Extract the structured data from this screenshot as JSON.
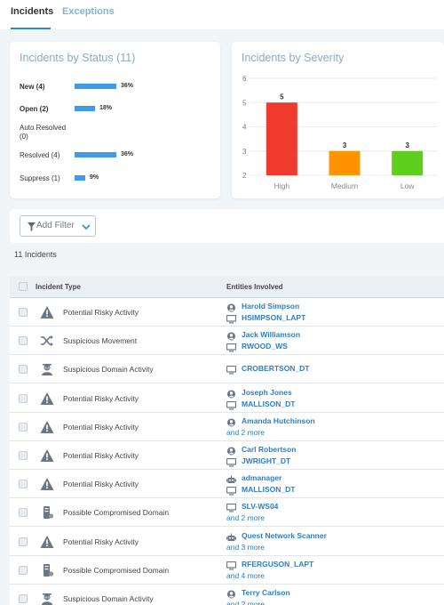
{
  "tabs": [
    "Incidents",
    "Exceptions"
  ],
  "status_card": {
    "title": "Incidents by Status (11)",
    "rows": [
      {
        "label": "New (4)",
        "bold": true,
        "pct": "36%",
        "fraction": 0.36
      },
      {
        "label": "Open (2)",
        "bold": true,
        "pct": "18%",
        "fraction": 0.18
      },
      {
        "label": "Auto Resolved (0)",
        "bold": false,
        "pct": "",
        "fraction": 0
      },
      {
        "label": "Resolved (4)",
        "bold": false,
        "pct": "36%",
        "fraction": 0.36
      },
      {
        "label": "Suppress (1)",
        "bold": false,
        "pct": "9%",
        "fraction": 0.09
      }
    ]
  },
  "severity_card": {
    "title": "Incidents by Severity"
  },
  "chart_data": {
    "type": "bar",
    "title": "Incidents by Severity",
    "categories": [
      "High",
      "Medium",
      "Low"
    ],
    "values": [
      5,
      3,
      3
    ],
    "value_labels": [
      "5",
      "3",
      "3"
    ],
    "colors": [
      "#f03a2e",
      "#ff9300",
      "#5ecf1f"
    ],
    "yticks": [
      "2",
      "3",
      "4",
      "5",
      "6"
    ],
    "ylim": [
      2,
      6
    ],
    "grid": true,
    "xlabel": "",
    "ylabel": ""
  },
  "filter": {
    "label": "Add Filter"
  },
  "count_text": "11 Incidents",
  "table": {
    "headers": {
      "type": "Incident Type",
      "entities": "Entities Involved"
    },
    "rows": [
      {
        "icon": "warning-icon",
        "type": "Potential Risky Activity",
        "entities": [
          {
            "icon": "user-icon",
            "text": "Harold Simpson"
          },
          {
            "icon": "computer-icon",
            "text": "HSIMPSON_LAPT"
          }
        ],
        "more": ""
      },
      {
        "icon": "shuffle-icon",
        "type": "Suspicious Movement",
        "entities": [
          {
            "icon": "user-icon",
            "text": "Jack Williamson"
          },
          {
            "icon": "computer-icon",
            "text": "RWOOD_WS"
          }
        ],
        "more": ""
      },
      {
        "icon": "spy-icon",
        "type": "Suspicious Domain Activity",
        "entities": [
          {
            "icon": "computer-icon",
            "text": "CROBERTSON_DT"
          }
        ],
        "more": ""
      },
      {
        "icon": "warning-icon",
        "type": "Potential Risky Activity",
        "entities": [
          {
            "icon": "user-icon",
            "text": "Joseph Jones"
          },
          {
            "icon": "computer-icon",
            "text": "MALLISON_DT"
          }
        ],
        "more": ""
      },
      {
        "icon": "warning-icon",
        "type": "Potential Risky Activity",
        "entities": [
          {
            "icon": "user-icon",
            "text": "Amanda Hutchinson"
          }
        ],
        "more": "and 2 more"
      },
      {
        "icon": "warning-icon",
        "type": "Potential Risky Activity",
        "entities": [
          {
            "icon": "user-icon",
            "text": "Carl Robertson"
          },
          {
            "icon": "computer-icon",
            "text": "JWRIGHT_DT"
          }
        ],
        "more": ""
      },
      {
        "icon": "warning-icon",
        "type": "Potential Risky Activity",
        "entities": [
          {
            "icon": "robot-icon",
            "text": "admanager"
          },
          {
            "icon": "computer-icon",
            "text": "MALLISON_DT"
          }
        ],
        "more": ""
      },
      {
        "icon": "domain-icon",
        "type": "Possible Compromised Domain",
        "entities": [
          {
            "icon": "computer-icon",
            "text": "SLV-WS04"
          }
        ],
        "more": "and 2 more"
      },
      {
        "icon": "warning-icon",
        "type": "Potential Risky Activity",
        "entities": [
          {
            "icon": "robot-icon",
            "text": "Quest Network Scanner"
          }
        ],
        "more": "and 3 more"
      },
      {
        "icon": "domain-icon",
        "type": "Possible Compromised Domain",
        "entities": [
          {
            "icon": "computer-icon",
            "text": "RFERGUSON_LAPT"
          }
        ],
        "more": "and 4 more"
      },
      {
        "icon": "spy-icon",
        "type": "Suspicious Domain Activity",
        "entities": [
          {
            "icon": "user-icon",
            "text": "Terry Carlson"
          }
        ],
        "more": "and 2 more"
      }
    ]
  }
}
